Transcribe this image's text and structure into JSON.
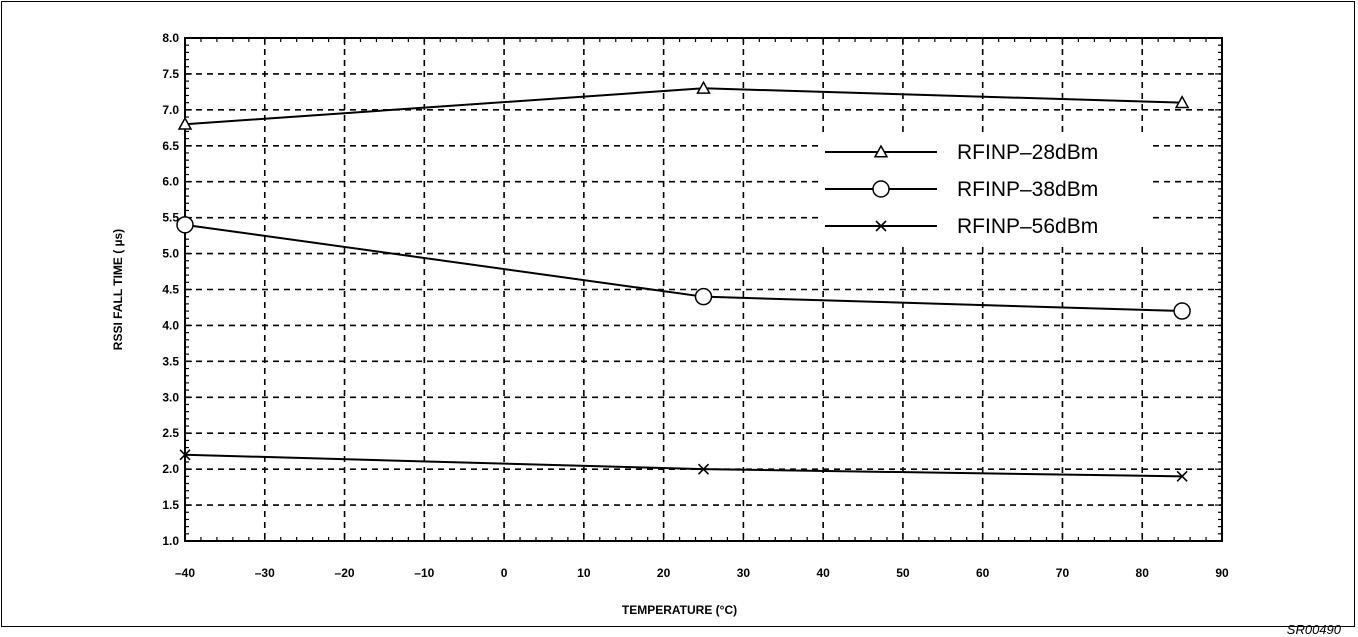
{
  "figure_id": "SR00490",
  "chart_data": {
    "type": "line",
    "xlabel": "TEMPERATURE (°C)",
    "ylabel": "RSSI FALL TIME   ( µs)",
    "xlim": [
      -40,
      90
    ],
    "ylim": [
      1.0,
      8.0
    ],
    "x_ticks": [
      -40,
      -30,
      -20,
      -10,
      0,
      10,
      20,
      30,
      40,
      50,
      60,
      70,
      80,
      90
    ],
    "x_tick_labels": [
      "–40",
      "–30",
      "–20",
      "–10",
      "0",
      "10",
      "20",
      "30",
      "40",
      "50",
      "60",
      "70",
      "80",
      "90"
    ],
    "y_ticks": [
      1.0,
      1.5,
      2.0,
      2.5,
      3.0,
      3.5,
      4.0,
      4.5,
      5.0,
      5.5,
      6.0,
      6.5,
      7.0,
      7.5,
      8.0
    ],
    "y_tick_labels": [
      "1.0",
      "1.5",
      "2.0",
      "2.5",
      "3.0",
      "3.5",
      "4.0",
      "4.5",
      "5.0",
      "5.5",
      "6.0",
      "6.5",
      "7.0",
      "7.5",
      "8.0"
    ],
    "grid": true,
    "grid_style": "dashed",
    "legend_position": "right",
    "series": [
      {
        "name": "RFINP–28dBm",
        "marker": "triangle",
        "x": [
          -40,
          25,
          85
        ],
        "y": [
          6.8,
          7.3,
          7.1
        ]
      },
      {
        "name": "RFINP–38dBm",
        "marker": "circle",
        "x": [
          -40,
          25,
          85
        ],
        "y": [
          5.4,
          4.4,
          4.2
        ]
      },
      {
        "name": "RFINP–56dBm",
        "marker": "cross",
        "x": [
          -40,
          25,
          85
        ],
        "y": [
          2.2,
          2.0,
          1.9
        ]
      }
    ]
  }
}
